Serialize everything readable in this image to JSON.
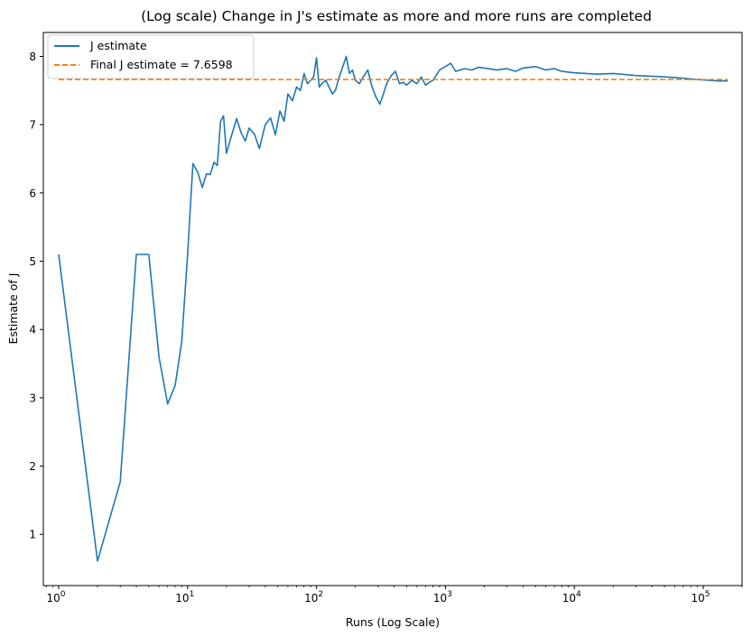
{
  "chart_data": {
    "type": "line",
    "title": "(Log scale) Change in J's estimate as more and more runs are completed",
    "xlabel": "Runs (Log Scale)",
    "ylabel": "Estimate of J",
    "xscale": "log",
    "xlim": [
      0.76,
      200000
    ],
    "ylim": [
      0.25,
      8.35
    ],
    "grid": false,
    "legend_position": "top-left",
    "x_ticks": [
      {
        "value": 1,
        "base": "10",
        "exp": "0"
      },
      {
        "value": 10,
        "base": "10",
        "exp": "1"
      },
      {
        "value": 100,
        "base": "10",
        "exp": "2"
      },
      {
        "value": 1000,
        "base": "10",
        "exp": "3"
      },
      {
        "value": 10000,
        "base": "10",
        "exp": "4"
      },
      {
        "value": 100000,
        "base": "10",
        "exp": "5"
      }
    ],
    "y_ticks": [
      1,
      2,
      3,
      4,
      5,
      6,
      7,
      8
    ],
    "series": [
      {
        "name": "J estimate",
        "color": "#1f77b4",
        "style": "solid",
        "x": [
          1,
          2,
          3,
          4,
          5,
          6,
          7,
          8,
          9,
          10,
          11,
          12,
          13,
          14,
          15,
          16,
          17,
          18,
          19,
          20,
          22,
          24,
          26,
          28,
          30,
          33,
          36,
          40,
          44,
          48,
          52,
          56,
          60,
          65,
          70,
          75,
          80,
          85,
          90,
          95,
          100,
          105,
          110,
          118,
          125,
          133,
          140,
          150,
          160,
          170,
          180,
          190,
          200,
          215,
          230,
          250,
          270,
          290,
          310,
          330,
          350,
          380,
          410,
          440,
          470,
          500,
          550,
          600,
          650,
          700,
          750,
          800,
          900,
          1000,
          1100,
          1200,
          1400,
          1600,
          1800,
          2000,
          2500,
          3000,
          3500,
          4000,
          5000,
          6000,
          7000,
          8000,
          10000,
          15000,
          20000,
          30000,
          50000,
          70000,
          90000,
          110000,
          130000,
          155000
        ],
        "y": [
          5.1,
          0.61,
          1.77,
          5.1,
          5.1,
          3.6,
          2.91,
          3.18,
          3.82,
          5.1,
          6.43,
          6.3,
          6.08,
          6.28,
          6.27,
          6.45,
          6.4,
          7.05,
          7.13,
          6.58,
          6.85,
          7.09,
          6.88,
          6.76,
          6.95,
          6.86,
          6.65,
          7.0,
          7.1,
          6.85,
          7.2,
          7.05,
          7.45,
          7.35,
          7.55,
          7.5,
          7.75,
          7.6,
          7.65,
          7.7,
          7.98,
          7.55,
          7.6,
          7.65,
          7.55,
          7.45,
          7.5,
          7.7,
          7.85,
          8.0,
          7.75,
          7.8,
          7.65,
          7.6,
          7.7,
          7.8,
          7.55,
          7.4,
          7.3,
          7.45,
          7.6,
          7.72,
          7.78,
          7.6,
          7.62,
          7.58,
          7.65,
          7.6,
          7.7,
          7.58,
          7.62,
          7.65,
          7.8,
          7.85,
          7.9,
          7.78,
          7.82,
          7.8,
          7.84,
          7.83,
          7.8,
          7.82,
          7.78,
          7.83,
          7.85,
          7.8,
          7.82,
          7.78,
          7.76,
          7.74,
          7.75,
          7.72,
          7.7,
          7.68,
          7.66,
          7.65,
          7.64,
          7.64
        ]
      },
      {
        "name": "Final J estimate = 7.6598",
        "color": "#ff7f0e",
        "style": "dashed",
        "x": [
          1,
          155000
        ],
        "y": [
          7.6598,
          7.6598
        ]
      }
    ]
  }
}
